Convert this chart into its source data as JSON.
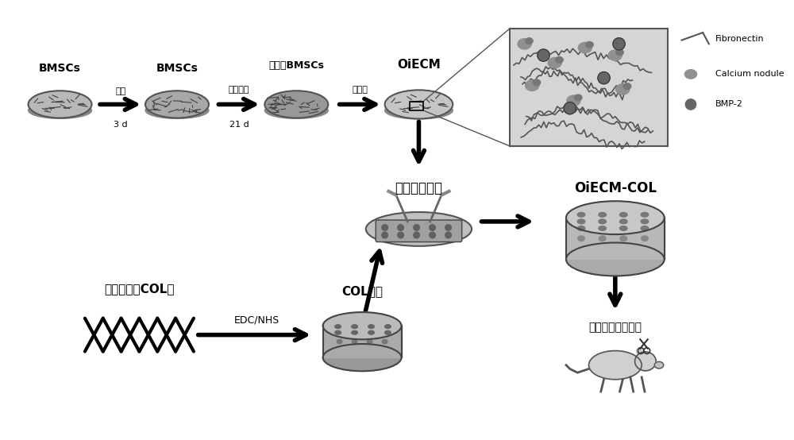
{
  "bg_color": "#ffffff",
  "text_color": "#000000",
  "arrow_color": "#000000",
  "gray_fill": "#b0b0b0",
  "light_gray": "#d0d0d0",
  "medium_gray": "#909090",
  "dark_gray": "#505050",
  "box_bg": "#d8d8d8",
  "labels": {
    "bmscs1": "BMSCs",
    "bmscs2": "BMSCs",
    "oibmscs": "骨诱导BMSCs",
    "oiecm": "OiECM",
    "oiecm_col": "OiECM-COL",
    "manual_wrap": "人工包裹组装",
    "collagen": "胶原蛋白（COL）",
    "col_scaffold": "COL支架",
    "rat_model": "大鼠颅骨缺损模型",
    "zengzhi": "增殖",
    "chenggu": "成骨分化",
    "tuxibao": "脱细胞",
    "3d": "3 d",
    "21d": "21 d",
    "edc_nhs": "EDC/NHS",
    "fibronectin": "Fibronectin",
    "calcium_nodule": "Calcium nodule",
    "bmp2": "BMP-2"
  },
  "figsize": [
    10.0,
    5.54
  ],
  "dpi": 100
}
